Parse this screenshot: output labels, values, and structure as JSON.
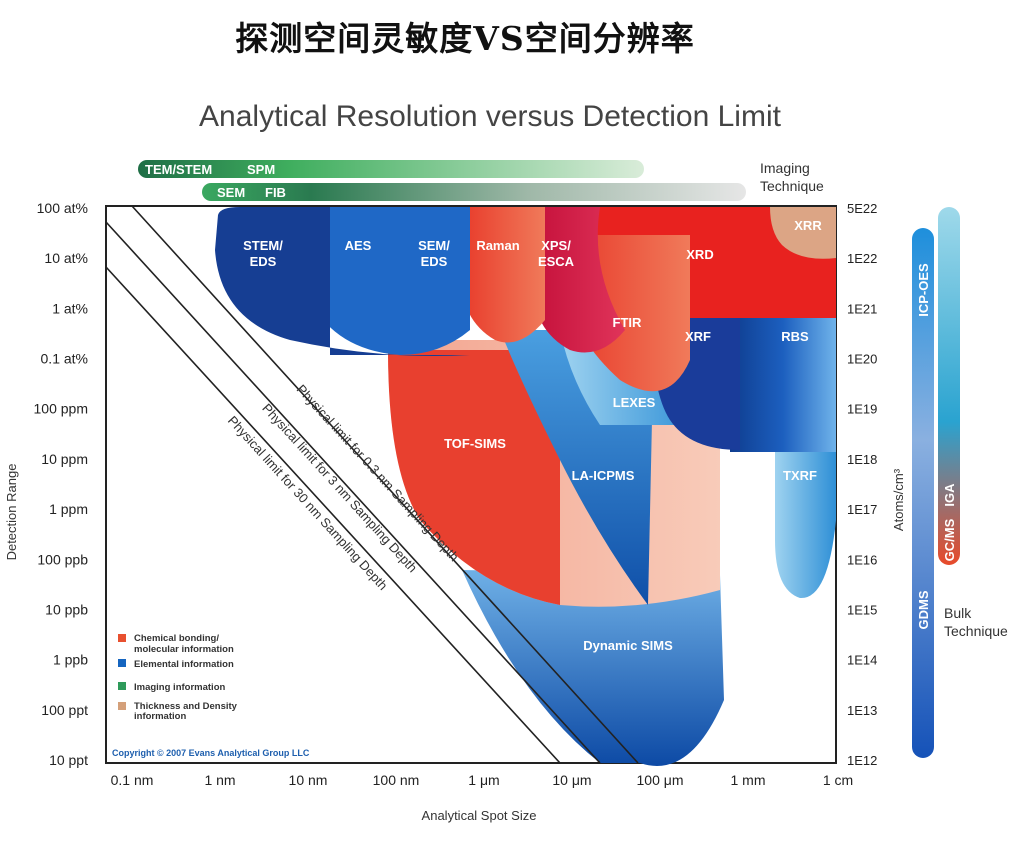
{
  "page_title": "探测空间灵敏度VS空间分辨率",
  "chart_data": {
    "type": "area",
    "title": "Analytical Resolution versus Detection Limit",
    "xlabel": "Analytical Spot Size",
    "ylabel": "Detection Range",
    "ylabel_right": "Atoms/cm³",
    "x_ticks": [
      "0.1 nm",
      "1 nm",
      "10 nm",
      "100 nm",
      "1 μm",
      "10 μm",
      "100 μm",
      "1 mm",
      "1 cm"
    ],
    "y_ticks": [
      "100 at%",
      "10 at%",
      "1 at%",
      "0.1 at%",
      "100 ppm",
      "10 ppm",
      "1 ppm",
      "100 ppb",
      "10 ppb",
      "1 ppb",
      "100 ppt",
      "10 ppt"
    ],
    "y_ticks_right": [
      "5E22",
      "1E22",
      "1E21",
      "1E20",
      "1E19",
      "1E18",
      "1E17",
      "1E16",
      "1E15",
      "1E14",
      "1E13",
      "1E12"
    ],
    "imaging_label": "Imaging Technique",
    "bulk_label": "Bulk Technique",
    "imaging_bars": [
      {
        "labels": [
          "TEM/STEM",
          "SPM"
        ]
      },
      {
        "labels": [
          "SEM",
          "FIB"
        ]
      }
    ],
    "bulk_bars": [
      {
        "labels": [
          "ICP-OES",
          "GDMS"
        ]
      },
      {
        "labels": [
          "IGA",
          "GC/MS"
        ]
      }
    ],
    "techniques": [
      {
        "name": "STEM/ EDS",
        "category": "Elemental information"
      },
      {
        "name": "AES",
        "category": "Elemental information"
      },
      {
        "name": "SEM/ EDS",
        "category": "Elemental information"
      },
      {
        "name": "Raman",
        "category": "Chemical bonding/ molecular information"
      },
      {
        "name": "XPS/ ESCA",
        "category": "Chemical bonding/ molecular information"
      },
      {
        "name": "XRD",
        "category": "Chemical bonding/ molecular information"
      },
      {
        "name": "XRR",
        "category": "Thickness and Density information"
      },
      {
        "name": "FTIR",
        "category": "Chemical bonding/ molecular information"
      },
      {
        "name": "XRF",
        "category": "Elemental information"
      },
      {
        "name": "RBS",
        "category": "Elemental information"
      },
      {
        "name": "LEXES",
        "category": "Elemental information"
      },
      {
        "name": "TOF-SIMS",
        "category": "Chemical bonding/ molecular information"
      },
      {
        "name": "LA-ICPMS",
        "category": "Elemental information"
      },
      {
        "name": "TXRF",
        "category": "Elemental information"
      },
      {
        "name": "Dynamic SIMS",
        "category": "Elemental information"
      }
    ],
    "limit_lines": [
      "Physical limit for 0.3 nm Sampling Depth",
      "Physical limit for 3 nm Sampling Depth",
      "Physical limit for 30 nm Sampling Depth"
    ],
    "legend": [
      {
        "label": "Chemical bonding/ molecular information",
        "color": "#e8502f"
      },
      {
        "label": "Elemental information",
        "color": "#1565c0"
      },
      {
        "label": "Imaging information",
        "color": "#2e9a5a"
      },
      {
        "label": "Thickness and Density information",
        "color": "#d4a07a"
      }
    ],
    "copyright": "Copyright © 2007 Evans Analytical Group LLC"
  }
}
